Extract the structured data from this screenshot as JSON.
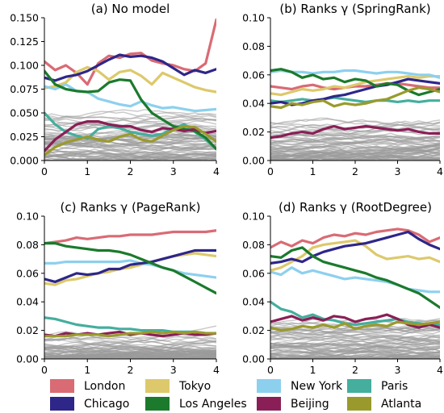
{
  "legend": {
    "placement": "bottom",
    "entries": [
      {
        "name": "London",
        "color": "#d96b74"
      },
      {
        "name": "Tokyo",
        "color": "#ddc96b"
      },
      {
        "name": "New York",
        "color": "#8dd0ee"
      },
      {
        "name": "Paris",
        "color": "#45ae9d"
      },
      {
        "name": "Chicago",
        "color": "#2e2689"
      },
      {
        "name": "Los Angeles",
        "color": "#1b7a2c"
      },
      {
        "name": "Beijing",
        "color": "#8a1f57"
      },
      {
        "name": "Atlanta",
        "color": "#9a9a2c"
      }
    ]
  },
  "chart_data": [
    {
      "type": "line",
      "title": "(a) No model",
      "xlim": [
        0,
        4
      ],
      "ylim": [
        0,
        0.15
      ],
      "xticks": [
        0,
        1,
        2,
        3,
        4
      ],
      "yticks": [
        0,
        0.025,
        0.05,
        0.075,
        0.1,
        0.125,
        0.15
      ],
      "ytick_labels": [
        "0.000",
        "0.025",
        "0.050",
        "0.075",
        "0.100",
        "0.125",
        "0.150"
      ],
      "grid": false,
      "x": [
        0,
        0.25,
        0.5,
        0.75,
        1,
        1.25,
        1.5,
        1.75,
        2,
        2.25,
        2.5,
        2.75,
        3,
        3.25,
        3.5,
        3.75,
        4
      ],
      "series": [
        {
          "name": "London",
          "values": [
            0.104,
            0.095,
            0.1,
            0.092,
            0.08,
            0.102,
            0.11,
            0.108,
            0.112,
            0.113,
            0.105,
            0.102,
            0.1,
            0.096,
            0.094,
            0.102,
            0.148
          ]
        },
        {
          "name": "Tokyo",
          "values": [
            0.076,
            0.078,
            0.082,
            0.093,
            0.098,
            0.094,
            0.085,
            0.093,
            0.095,
            0.089,
            0.08,
            0.092,
            0.087,
            0.082,
            0.077,
            0.074,
            0.072
          ]
        },
        {
          "name": "New York",
          "values": [
            0.078,
            0.075,
            0.08,
            0.073,
            0.072,
            0.065,
            0.062,
            0.059,
            0.057,
            0.062,
            0.058,
            0.055,
            0.056,
            0.054,
            0.052,
            0.053,
            0.054
          ]
        },
        {
          "name": "Paris",
          "values": [
            0.05,
            0.038,
            0.03,
            0.026,
            0.023,
            0.033,
            0.036,
            0.034,
            0.03,
            0.028,
            0.026,
            0.028,
            0.034,
            0.038,
            0.03,
            0.022,
            0.012
          ]
        },
        {
          "name": "Chicago",
          "values": [
            0.087,
            0.084,
            0.088,
            0.09,
            0.094,
            0.1,
            0.106,
            0.111,
            0.109,
            0.11,
            0.108,
            0.104,
            0.097,
            0.09,
            0.095,
            0.092,
            0.096
          ]
        },
        {
          "name": "Los Angeles",
          "values": [
            0.094,
            0.08,
            0.075,
            0.073,
            0.072,
            0.073,
            0.082,
            0.085,
            0.084,
            0.064,
            0.05,
            0.043,
            0.036,
            0.033,
            0.031,
            0.024,
            0.012
          ]
        },
        {
          "name": "Beijing",
          "values": [
            0.01,
            0.022,
            0.03,
            0.038,
            0.041,
            0.041,
            0.038,
            0.036,
            0.036,
            0.032,
            0.03,
            0.034,
            0.033,
            0.031,
            0.033,
            0.029,
            0.031
          ]
        },
        {
          "name": "Atlanta",
          "values": [
            0.006,
            0.014,
            0.019,
            0.022,
            0.025,
            0.022,
            0.02,
            0.025,
            0.028,
            0.022,
            0.02,
            0.026,
            0.032,
            0.036,
            0.035,
            0.028,
            0.02
          ]
        }
      ]
    },
    {
      "type": "line",
      "title": "(b) Ranks γ (SpringRank)",
      "xlim": [
        0,
        4
      ],
      "ylim": [
        0,
        0.1
      ],
      "xticks": [
        0,
        1,
        2,
        3,
        4
      ],
      "yticks": [
        0,
        0.02,
        0.04,
        0.06,
        0.08,
        0.1
      ],
      "ytick_labels": [
        "0.00",
        "0.02",
        "0.04",
        "0.06",
        "0.08",
        "0.10"
      ],
      "grid": false,
      "x": [
        0,
        0.25,
        0.5,
        0.75,
        1,
        1.25,
        1.5,
        1.75,
        2,
        2.25,
        2.5,
        2.75,
        3,
        3.25,
        3.5,
        3.75,
        4
      ],
      "series": [
        {
          "name": "London",
          "values": [
            0.052,
            0.051,
            0.05,
            0.052,
            0.053,
            0.051,
            0.05,
            0.051,
            0.052,
            0.052,
            0.053,
            0.054,
            0.054,
            0.053,
            0.052,
            0.051,
            0.051
          ]
        },
        {
          "name": "Tokyo",
          "values": [
            0.047,
            0.046,
            0.048,
            0.05,
            0.049,
            0.05,
            0.052,
            0.051,
            0.053,
            0.055,
            0.056,
            0.057,
            0.058,
            0.059,
            0.058,
            0.059,
            0.059
          ]
        },
        {
          "name": "New York",
          "values": [
            0.062,
            0.063,
            0.062,
            0.062,
            0.061,
            0.062,
            0.062,
            0.063,
            0.063,
            0.062,
            0.061,
            0.062,
            0.062,
            0.061,
            0.06,
            0.06,
            0.058
          ]
        },
        {
          "name": "Paris",
          "values": [
            0.042,
            0.041,
            0.042,
            0.043,
            0.042,
            0.043,
            0.044,
            0.043,
            0.042,
            0.041,
            0.042,
            0.042,
            0.041,
            0.042,
            0.041,
            0.042,
            0.042
          ]
        },
        {
          "name": "Chicago",
          "values": [
            0.04,
            0.041,
            0.039,
            0.04,
            0.042,
            0.043,
            0.045,
            0.046,
            0.048,
            0.05,
            0.052,
            0.053,
            0.055,
            0.057,
            0.056,
            0.055,
            0.054
          ]
        },
        {
          "name": "Los Angeles",
          "values": [
            0.063,
            0.064,
            0.062,
            0.058,
            0.06,
            0.057,
            0.058,
            0.055,
            0.057,
            0.056,
            0.052,
            0.054,
            0.053,
            0.049,
            0.046,
            0.048,
            0.05
          ]
        },
        {
          "name": "Beijing",
          "values": [
            0.016,
            0.017,
            0.019,
            0.02,
            0.019,
            0.022,
            0.024,
            0.022,
            0.023,
            0.024,
            0.023,
            0.022,
            0.021,
            0.022,
            0.02,
            0.019,
            0.019
          ]
        },
        {
          "name": "Atlanta",
          "values": [
            0.038,
            0.037,
            0.04,
            0.039,
            0.041,
            0.042,
            0.038,
            0.04,
            0.039,
            0.04,
            0.042,
            0.043,
            0.046,
            0.049,
            0.051,
            0.05,
            0.048
          ]
        }
      ]
    },
    {
      "type": "line",
      "title": "(c) Ranks γ (PageRank)",
      "xlim": [
        0,
        4
      ],
      "ylim": [
        0,
        0.1
      ],
      "xticks": [
        0,
        1,
        2,
        3,
        4
      ],
      "yticks": [
        0,
        0.02,
        0.04,
        0.06,
        0.08,
        0.1
      ],
      "ytick_labels": [
        "0.00",
        "0.02",
        "0.04",
        "0.06",
        "0.08",
        "0.10"
      ],
      "grid": false,
      "x": [
        0,
        0.25,
        0.5,
        0.75,
        1,
        1.25,
        1.5,
        1.75,
        2,
        2.25,
        2.5,
        2.75,
        3,
        3.25,
        3.5,
        3.75,
        4
      ],
      "series": [
        {
          "name": "London",
          "values": [
            0.081,
            0.082,
            0.083,
            0.085,
            0.084,
            0.085,
            0.086,
            0.086,
            0.087,
            0.087,
            0.087,
            0.088,
            0.089,
            0.089,
            0.089,
            0.089,
            0.09
          ]
        },
        {
          "name": "Tokyo",
          "values": [
            0.053,
            0.052,
            0.055,
            0.056,
            0.058,
            0.06,
            0.061,
            0.063,
            0.064,
            0.066,
            0.068,
            0.07,
            0.072,
            0.073,
            0.074,
            0.073,
            0.072
          ]
        },
        {
          "name": "New York",
          "values": [
            0.067,
            0.067,
            0.068,
            0.068,
            0.068,
            0.068,
            0.068,
            0.068,
            0.069,
            0.067,
            0.066,
            0.064,
            0.062,
            0.06,
            0.059,
            0.058,
            0.057
          ]
        },
        {
          "name": "Paris",
          "values": [
            0.029,
            0.028,
            0.026,
            0.024,
            0.023,
            0.022,
            0.022,
            0.021,
            0.021,
            0.02,
            0.02,
            0.02,
            0.019,
            0.019,
            0.019,
            0.018,
            0.018
          ]
        },
        {
          "name": "Chicago",
          "values": [
            0.056,
            0.054,
            0.057,
            0.06,
            0.059,
            0.06,
            0.063,
            0.063,
            0.066,
            0.067,
            0.068,
            0.07,
            0.072,
            0.074,
            0.076,
            0.076,
            0.076
          ]
        },
        {
          "name": "Los Angeles",
          "values": [
            0.081,
            0.081,
            0.079,
            0.078,
            0.077,
            0.076,
            0.076,
            0.075,
            0.073,
            0.07,
            0.067,
            0.064,
            0.062,
            0.058,
            0.054,
            0.05,
            0.046
          ]
        },
        {
          "name": "Beijing",
          "values": [
            0.017,
            0.016,
            0.018,
            0.017,
            0.018,
            0.017,
            0.018,
            0.019,
            0.017,
            0.018,
            0.017,
            0.016,
            0.017,
            0.018,
            0.017,
            0.017,
            0.018
          ]
        },
        {
          "name": "Atlanta",
          "values": [
            0.016,
            0.016,
            0.016,
            0.017,
            0.017,
            0.017,
            0.016,
            0.017,
            0.018,
            0.018,
            0.019,
            0.018,
            0.019,
            0.018,
            0.019,
            0.018,
            0.018
          ]
        }
      ]
    },
    {
      "type": "line",
      "title": "(d) Ranks γ (RootDegree)",
      "xlim": [
        0,
        4
      ],
      "ylim": [
        0,
        0.1
      ],
      "xticks": [
        0,
        1,
        2,
        3,
        4
      ],
      "yticks": [
        0,
        0.02,
        0.04,
        0.06,
        0.08,
        0.1
      ],
      "ytick_labels": [
        "0.00",
        "0.02",
        "0.04",
        "0.06",
        "0.08",
        "0.10"
      ],
      "grid": false,
      "x": [
        0,
        0.25,
        0.5,
        0.75,
        1,
        1.25,
        1.5,
        1.75,
        2,
        2.25,
        2.5,
        2.75,
        3,
        3.25,
        3.5,
        3.75,
        4
      ],
      "series": [
        {
          "name": "London",
          "values": [
            0.078,
            0.082,
            0.079,
            0.083,
            0.081,
            0.085,
            0.087,
            0.086,
            0.088,
            0.087,
            0.089,
            0.09,
            0.091,
            0.09,
            0.087,
            0.082,
            0.085
          ]
        },
        {
          "name": "Tokyo",
          "values": [
            0.062,
            0.064,
            0.068,
            0.072,
            0.078,
            0.08,
            0.081,
            0.082,
            0.083,
            0.079,
            0.073,
            0.07,
            0.071,
            0.072,
            0.07,
            0.071,
            0.068
          ]
        },
        {
          "name": "New York",
          "values": [
            0.061,
            0.059,
            0.064,
            0.06,
            0.062,
            0.06,
            0.058,
            0.056,
            0.057,
            0.056,
            0.055,
            0.054,
            0.052,
            0.049,
            0.048,
            0.047,
            0.047
          ]
        },
        {
          "name": "Paris",
          "values": [
            0.04,
            0.035,
            0.033,
            0.029,
            0.031,
            0.028,
            0.027,
            0.025,
            0.024,
            0.025,
            0.026,
            0.027,
            0.028,
            0.026,
            0.025,
            0.024,
            0.024
          ]
        },
        {
          "name": "Chicago",
          "values": [
            0.067,
            0.068,
            0.07,
            0.068,
            0.072,
            0.075,
            0.077,
            0.079,
            0.08,
            0.081,
            0.083,
            0.085,
            0.087,
            0.089,
            0.084,
            0.08,
            0.077
          ]
        },
        {
          "name": "Los Angeles",
          "values": [
            0.072,
            0.071,
            0.076,
            0.078,
            0.072,
            0.068,
            0.066,
            0.064,
            0.062,
            0.06,
            0.057,
            0.055,
            0.052,
            0.049,
            0.046,
            0.041,
            0.036
          ]
        },
        {
          "name": "Beijing",
          "values": [
            0.026,
            0.028,
            0.03,
            0.027,
            0.029,
            0.027,
            0.03,
            0.029,
            0.026,
            0.028,
            0.029,
            0.031,
            0.028,
            0.024,
            0.022,
            0.024,
            0.022
          ]
        },
        {
          "name": "Atlanta",
          "values": [
            0.022,
            0.02,
            0.021,
            0.023,
            0.022,
            0.024,
            0.022,
            0.025,
            0.021,
            0.023,
            0.024,
            0.023,
            0.026,
            0.025,
            0.024,
            0.025,
            0.026
          ]
        }
      ]
    }
  ]
}
